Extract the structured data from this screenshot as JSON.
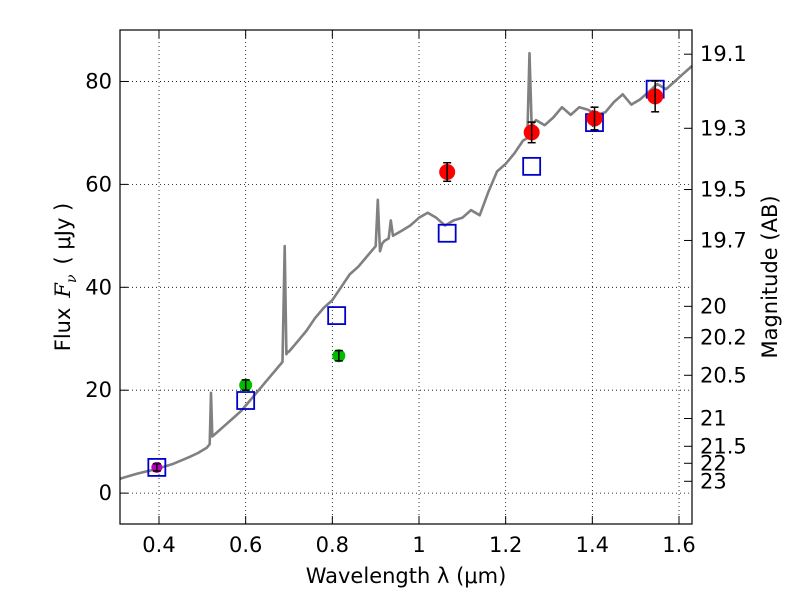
{
  "chart_data": {
    "type": "scatter",
    "xlabel": "Wavelength  λ (μm)",
    "ylabel_prefix": "Flux",
    "ylabel_symbol": "F",
    "ylabel_subscript": "ν",
    "ylabel_units": "( μJy )",
    "y2label": "Magnitude (AB)",
    "xlim": [
      0.31,
      1.63
    ],
    "ylim": [
      -6,
      90
    ],
    "grid": true,
    "x_ticks": [
      {
        "value": 0.4,
        "label": "0.4"
      },
      {
        "value": 0.6,
        "label": "0.6"
      },
      {
        "value": 0.8,
        "label": "0.8"
      },
      {
        "value": 1.0,
        "label": "1"
      },
      {
        "value": 1.2,
        "label": "1.2"
      },
      {
        "value": 1.4,
        "label": "1.4"
      },
      {
        "value": 1.6,
        "label": "1.6"
      }
    ],
    "y_ticks": [
      {
        "value": 0,
        "label": "0"
      },
      {
        "value": 20,
        "label": "20"
      },
      {
        "value": 40,
        "label": "40"
      },
      {
        "value": 60,
        "label": "60"
      },
      {
        "value": 80,
        "label": "80"
      }
    ],
    "mag_ticks": [
      {
        "flux": 85.3,
        "label": "19.1"
      },
      {
        "flux": 70.9,
        "label": "19.3"
      },
      {
        "flux": 59.0,
        "label": "19.5"
      },
      {
        "flux": 49.1,
        "label": "19.7"
      },
      {
        "flux": 36.3,
        "label": "20"
      },
      {
        "flux": 30.2,
        "label": "20.2"
      },
      {
        "flux": 22.9,
        "label": "20.5"
      },
      {
        "flux": 14.5,
        "label": "21"
      },
      {
        "flux": 9.1,
        "label": "21.5"
      },
      {
        "flux": 5.8,
        "label": "22"
      },
      {
        "flux": 2.3,
        "label": "23"
      }
    ],
    "colors": {
      "spectrum": "#808080",
      "model": "#0000cc",
      "optical": "#00bb00",
      "uv": "#bb00bb",
      "nir": "#ff0000",
      "errorbar": "#000000"
    },
    "series": [
      {
        "name": "spectrum",
        "type": "line",
        "x": [
          0.31,
          0.33,
          0.35,
          0.37,
          0.39,
          0.41,
          0.43,
          0.45,
          0.47,
          0.49,
          0.51,
          0.517,
          0.52,
          0.523,
          0.53,
          0.55,
          0.57,
          0.59,
          0.6,
          0.61,
          0.63,
          0.65,
          0.67,
          0.685,
          0.69,
          0.694,
          0.698,
          0.7,
          0.72,
          0.74,
          0.76,
          0.78,
          0.8,
          0.82,
          0.84,
          0.86,
          0.88,
          0.9,
          0.905,
          0.91,
          0.915,
          0.92,
          0.93,
          0.935,
          0.94,
          0.96,
          0.98,
          1.0,
          1.02,
          1.04,
          1.06,
          1.08,
          1.1,
          1.12,
          1.14,
          1.16,
          1.18,
          1.2,
          1.22,
          1.24,
          1.25,
          1.255,
          1.26,
          1.265,
          1.27,
          1.29,
          1.31,
          1.33,
          1.35,
          1.37,
          1.39,
          1.41,
          1.43,
          1.45,
          1.47,
          1.49,
          1.51,
          1.53,
          1.55,
          1.57,
          1.59,
          1.61,
          1.63
        ],
        "y": [
          2.8,
          3.3,
          3.8,
          4.2,
          4.6,
          5.1,
          5.6,
          6.3,
          7.0,
          7.8,
          8.8,
          9.5,
          19.5,
          11.0,
          11.5,
          13.0,
          14.5,
          16.0,
          17.0,
          18.0,
          20.0,
          22.0,
          24.0,
          25.5,
          48.0,
          27.0,
          27.5,
          27.5,
          29.5,
          31.5,
          34.0,
          36.0,
          37.5,
          40.0,
          42.5,
          44.0,
          46.0,
          48.0,
          57.0,
          47.0,
          48.5,
          49.0,
          49.5,
          53.0,
          50.0,
          51.0,
          52.0,
          53.5,
          54.5,
          53.5,
          52.0,
          53.0,
          53.5,
          55.0,
          54.0,
          58.5,
          62.5,
          64.0,
          66.0,
          68.5,
          69.0,
          85.5,
          71.0,
          72.0,
          72.5,
          71.5,
          73.0,
          75.0,
          73.5,
          75.0,
          74.5,
          73.5,
          74.0,
          76.0,
          77.5,
          75.5,
          76.5,
          78.0,
          79.5,
          78.5,
          80.0,
          81.5,
          83.0
        ]
      },
      {
        "name": "model photometry",
        "type": "square",
        "x": [
          0.395,
          0.6,
          0.81,
          1.065,
          1.26,
          1.405,
          1.545
        ],
        "y": [
          5.0,
          18.0,
          34.5,
          50.5,
          63.5,
          72.0,
          78.5
        ]
      },
      {
        "name": "UV",
        "type": "circle",
        "x": [
          0.395
        ],
        "y": [
          5.0
        ],
        "err": [
          0.7
        ]
      },
      {
        "name": "optical",
        "type": "circle",
        "x": [
          0.6,
          0.815
        ],
        "y": [
          21.0,
          26.7
        ],
        "err": [
          1.0,
          1.0
        ]
      },
      {
        "name": "NIR",
        "type": "circle",
        "x": [
          1.065,
          1.26,
          1.405,
          1.545
        ],
        "y": [
          62.4,
          70.1,
          72.8,
          77.1
        ],
        "err": [
          1.8,
          2.0,
          2.2,
          3.0
        ]
      }
    ]
  }
}
